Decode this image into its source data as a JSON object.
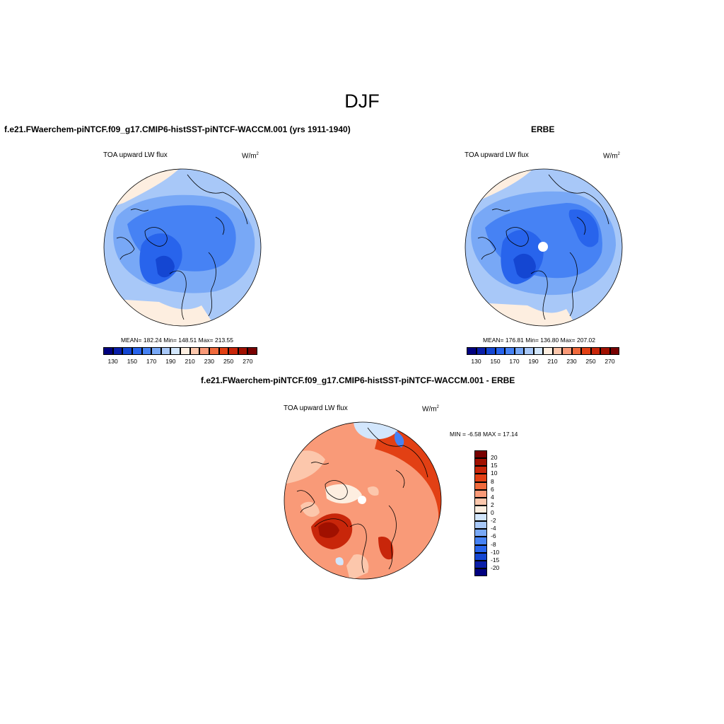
{
  "figure": {
    "title": "DJF",
    "colors": {
      "coastline": "#000000",
      "background": "#ffffff"
    }
  },
  "panels": [
    {
      "id": "model",
      "case_title": "f.e21.FWaerchem-piNTCF.f09_g17.CMIP6-histSST-piNTCF-WACCM.001 (yrs 1911-1940)",
      "field": "TOA upward LW flux",
      "units": "W/m",
      "units_exp": "2",
      "stats": "MEAN= 182.24   Min= 148.51   Max= 213.55",
      "mean": 182.24,
      "min": 148.51,
      "max": 213.55,
      "colorbar_labels": [
        "130",
        "150",
        "170",
        "190",
        "210",
        "230",
        "250",
        "270"
      ]
    },
    {
      "id": "obs",
      "case_title": "ERBE",
      "field": "TOA upward LW flux",
      "units": "W/m",
      "units_exp": "2",
      "stats": "MEAN= 176.81   Min= 136.80   Max= 207.02",
      "mean": 176.81,
      "min": 136.8,
      "max": 207.02,
      "colorbar_labels": [
        "130",
        "150",
        "170",
        "190",
        "210",
        "230",
        "250",
        "270"
      ]
    },
    {
      "id": "diff",
      "case_title": "f.e21.FWaerchem-piNTCF.f09_g17.CMIP6-histSST-piNTCF-WACCM.001 - ERBE",
      "field": "TOA upward LW flux",
      "units": "W/m",
      "units_exp": "2",
      "stats": "MIN =  -6.58 MAX =  17.14",
      "min": -6.58,
      "max": 17.14,
      "colorbar_labels": [
        "20",
        "15",
        "10",
        "8",
        "6",
        "4",
        "2",
        "0",
        "-2",
        "-4",
        "-6",
        "-8",
        "-10",
        "-15",
        "-20"
      ]
    }
  ],
  "colorbars": {
    "absolute": [
      "#00007f",
      "#0a1ea8",
      "#1446d2",
      "#2864ec",
      "#4682f4",
      "#78a8f6",
      "#a8c8f8",
      "#d2e6fc",
      "#fdeee0",
      "#fcc7ac",
      "#f99a78",
      "#f06a3c",
      "#e24014",
      "#c8260a",
      "#a01000",
      "#780000"
    ],
    "difference": [
      "#780000",
      "#a01000",
      "#c8260a",
      "#e24014",
      "#f06a3c",
      "#f99a78",
      "#fcc7ac",
      "#fdeee0",
      "#d2e6fc",
      "#a8c8f8",
      "#78a8f6",
      "#4682f4",
      "#2864ec",
      "#1446d2",
      "#0a1ea8",
      "#00007f"
    ]
  }
}
